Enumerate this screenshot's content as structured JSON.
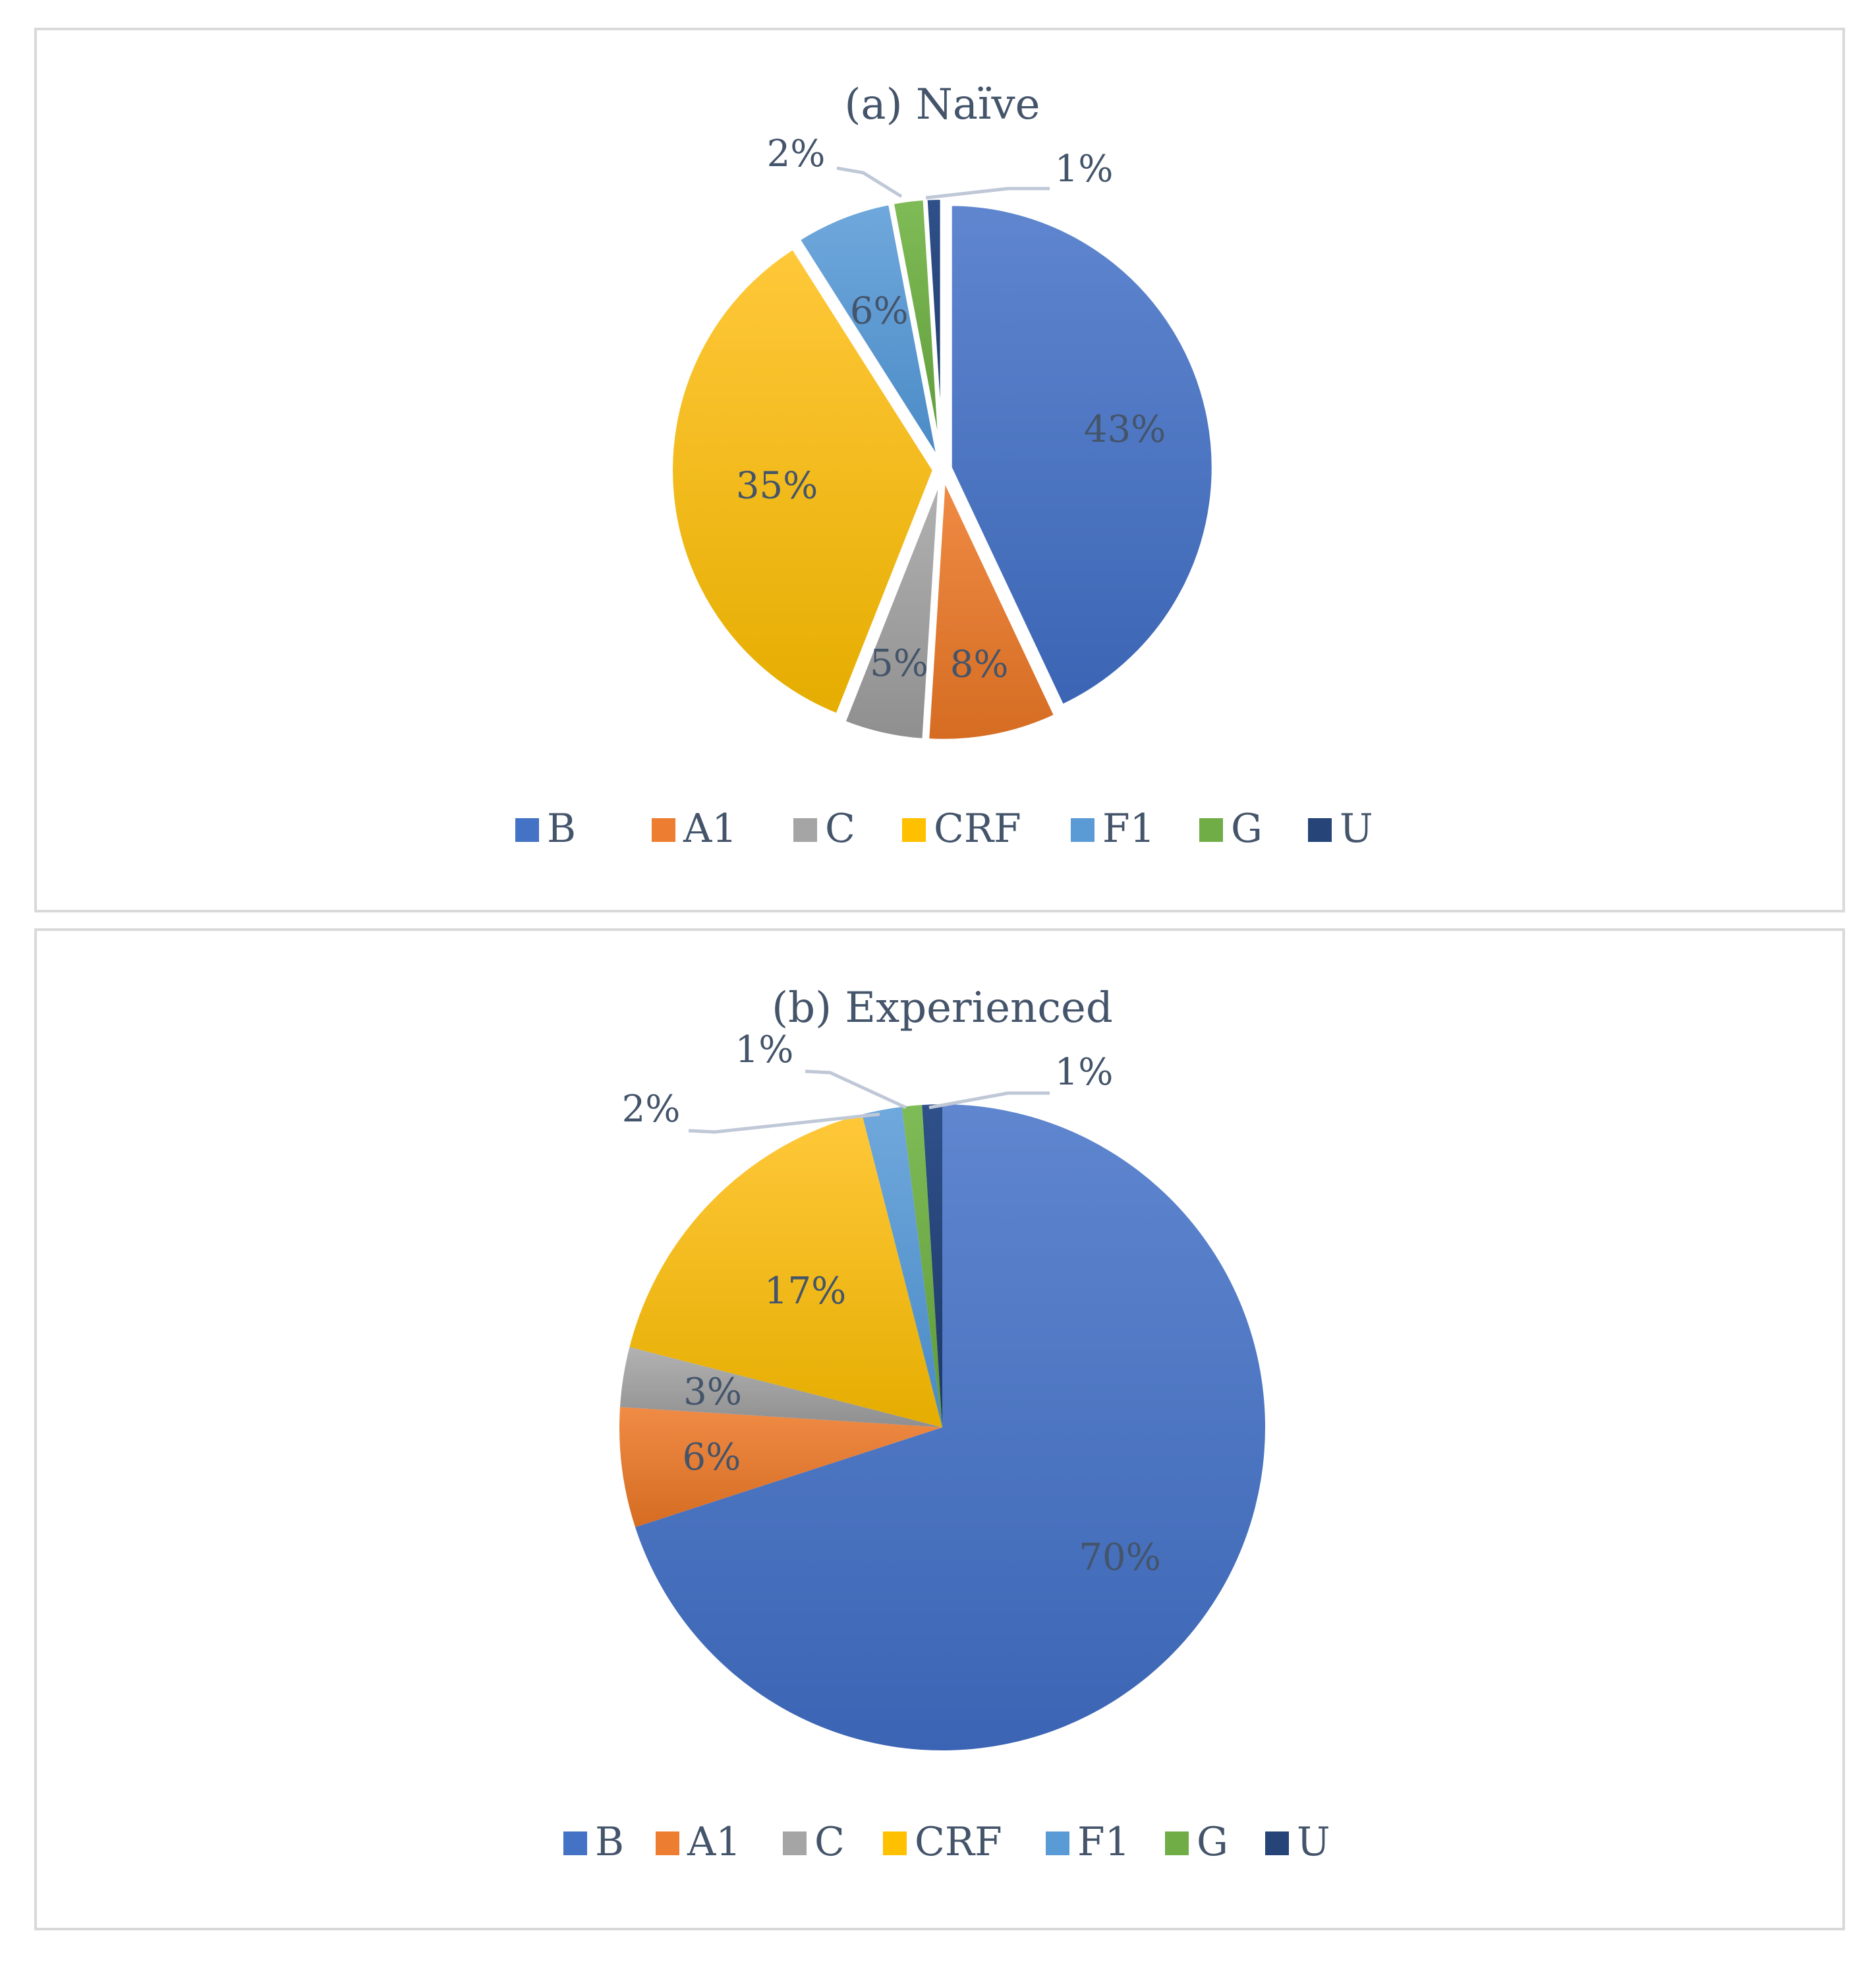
{
  "chart_data": [
    {
      "type": "pie",
      "title": "(a) Naïve",
      "categories": [
        "B",
        "A1",
        "C",
        "CRF",
        "F1",
        "G",
        "U"
      ],
      "values": [
        43,
        8,
        5,
        35,
        6,
        2,
        1
      ],
      "labels": [
        "43%",
        "8%",
        "5%",
        "35%",
        "6%",
        "2%",
        "1%"
      ],
      "colors": [
        "#4472c4",
        "#ed7d31",
        "#a5a5a5",
        "#ffc000",
        "#5b9bd5",
        "#70ad47",
        "#264478"
      ],
      "exploded": true,
      "legend_position": "bottom"
    },
    {
      "type": "pie",
      "title": "(b) Experienced",
      "categories": [
        "B",
        "A1",
        "C",
        "CRF",
        "F1",
        "G",
        "U"
      ],
      "values": [
        70,
        6,
        3,
        17,
        2,
        1,
        1
      ],
      "labels": [
        "70%",
        "6%",
        "3%",
        "17%",
        "2%",
        "1%",
        "1%"
      ],
      "colors": [
        "#4472c4",
        "#ed7d31",
        "#a5a5a5",
        "#ffc000",
        "#5b9bd5",
        "#70ad47",
        "#264478"
      ],
      "exploded": false,
      "legend_position": "bottom"
    }
  ]
}
